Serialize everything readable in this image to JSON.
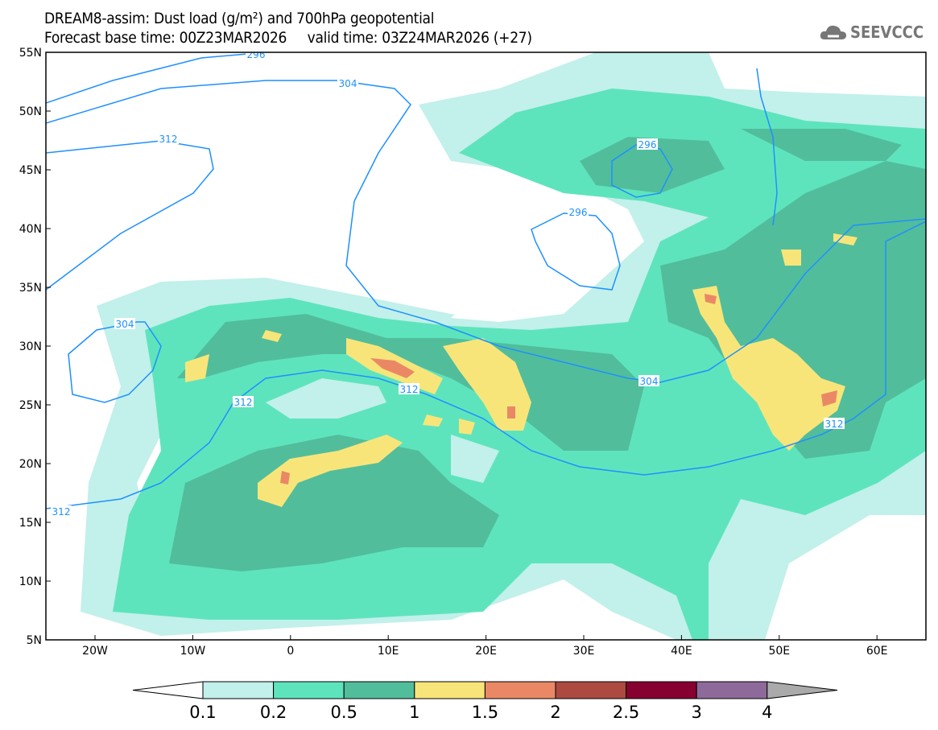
{
  "header": {
    "title_line1": "DREAM8-assim: Dust load (g/m²) and 700hPa geopotential",
    "title_line2": "Forecast base time: 00Z23MAR2026     valid time: 03Z24MAR2026 (+27)",
    "logo_text": "SEEVCCC"
  },
  "axes": {
    "lat_labels": [
      "55N",
      "50N",
      "45N",
      "40N",
      "35N",
      "30N",
      "25N",
      "20N",
      "15N",
      "10N",
      "5N"
    ],
    "lon_labels": [
      "20W",
      "10W",
      "0",
      "10E",
      "20E",
      "30E",
      "40E",
      "50E",
      "60E"
    ]
  },
  "contour_labels": [
    "296",
    "304",
    "312",
    "304",
    "312",
    "312",
    "312",
    "296",
    "296",
    "304",
    "312"
  ],
  "colorbar": {
    "labels": [
      "0.1",
      "0.2",
      "0.5",
      "1",
      "1.5",
      "2",
      "2.5",
      "3",
      "4"
    ],
    "colors": [
      "#c2f0ea",
      "#5ee4bd",
      "#52bd9b",
      "#f8e57a",
      "#ea8866",
      "#ac4a41",
      "#860030",
      "#8e6a9b"
    ],
    "under_color": "#ffffff",
    "over_color": "#aaaaaa"
  }
}
